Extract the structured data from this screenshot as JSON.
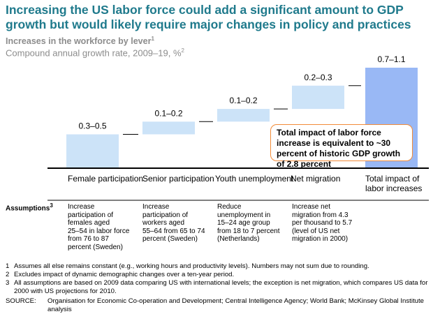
{
  "header": {
    "title": "Increasing the US labor force could add a significant amount to GDP growth but would likely require major changes in policy and practices",
    "subtitle": "Increases in the workforce by lever",
    "subtitle_sup": "1",
    "subtitle2": "Compound annual growth rate, 2009–19, %",
    "subtitle2_sup": "2"
  },
  "colors": {
    "bar": "#cce3f8",
    "total_bar": "#99b8f5",
    "title": "#1f7a8c",
    "callout_border": "#f28b38"
  },
  "callout": "Total impact of labor force increase is equivalent to ~30 percent of historic GDP growth of 2.8 percent",
  "chart_data": {
    "type": "bar",
    "subtype": "waterfall",
    "ylim": [
      0,
      1.1
    ],
    "categories": [
      "Female participation",
      "Senior participation",
      "Youth unemployment",
      "Net migration",
      "Total impact of labor increases"
    ],
    "value_labels": [
      "0.3–0.5",
      "0.1–0.2",
      "0.1–0.2",
      "0.2–0.3",
      "0.7–1.1"
    ],
    "bars": [
      {
        "start": 0,
        "end": 0.32
      },
      {
        "start": 0.32,
        "end": 0.44
      },
      {
        "start": 0.44,
        "end": 0.56
      },
      {
        "start": 0.56,
        "end": 0.78
      },
      {
        "start": 0,
        "end": 0.95,
        "total": true
      }
    ]
  },
  "assumptions": {
    "label": "Assumptions",
    "label_sup": "3",
    "items": [
      [
        "Increase",
        "participation of",
        "females aged",
        "25–54 in labor force",
        "from 76 to 87",
        "percent (Sweden)"
      ],
      [
        "Increase",
        "participation of",
        "workers aged",
        "55–64 from 65 to 74",
        "percent (Sweden)"
      ],
      [
        "Reduce",
        "unemployment in",
        "15–24 age group",
        "from 18 to 7 percent",
        "(Netherlands)"
      ],
      [
        "Increase net",
        "migration from 4.3",
        "per thousand to 5.7",
        "(level of US net",
        "migration in 2000)"
      ],
      []
    ]
  },
  "footnotes": [
    {
      "num": "1",
      "text": "Assumes all else remains constant (e.g., working hours and productivity levels). Numbers may not sum due to rounding."
    },
    {
      "num": "2",
      "text": "Excludes impact of dynamic demographic changes over a ten-year period."
    },
    {
      "num": "3",
      "text": "All assumptions are based on 2009 data comparing US with international levels; the exception is net migration, which compares US data for 2000 with US projections for 2010."
    }
  ],
  "source": {
    "label": "SOURCE:",
    "text": "Organisation for Economic Co-operation and Development; Central Intelligence Agency; World Bank; McKinsey Global Institute analysis"
  }
}
